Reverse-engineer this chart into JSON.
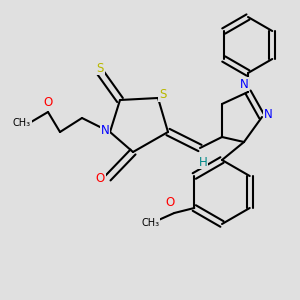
{
  "bg_color": "#e0e0e0",
  "atom_colors": {
    "S": "#b8b800",
    "N": "#0000ff",
    "O": "#ff0000",
    "C": "#000000",
    "H": "#008888"
  },
  "bond_color": "#000000",
  "bond_width": 1.5,
  "font_size_atom": 8.5
}
